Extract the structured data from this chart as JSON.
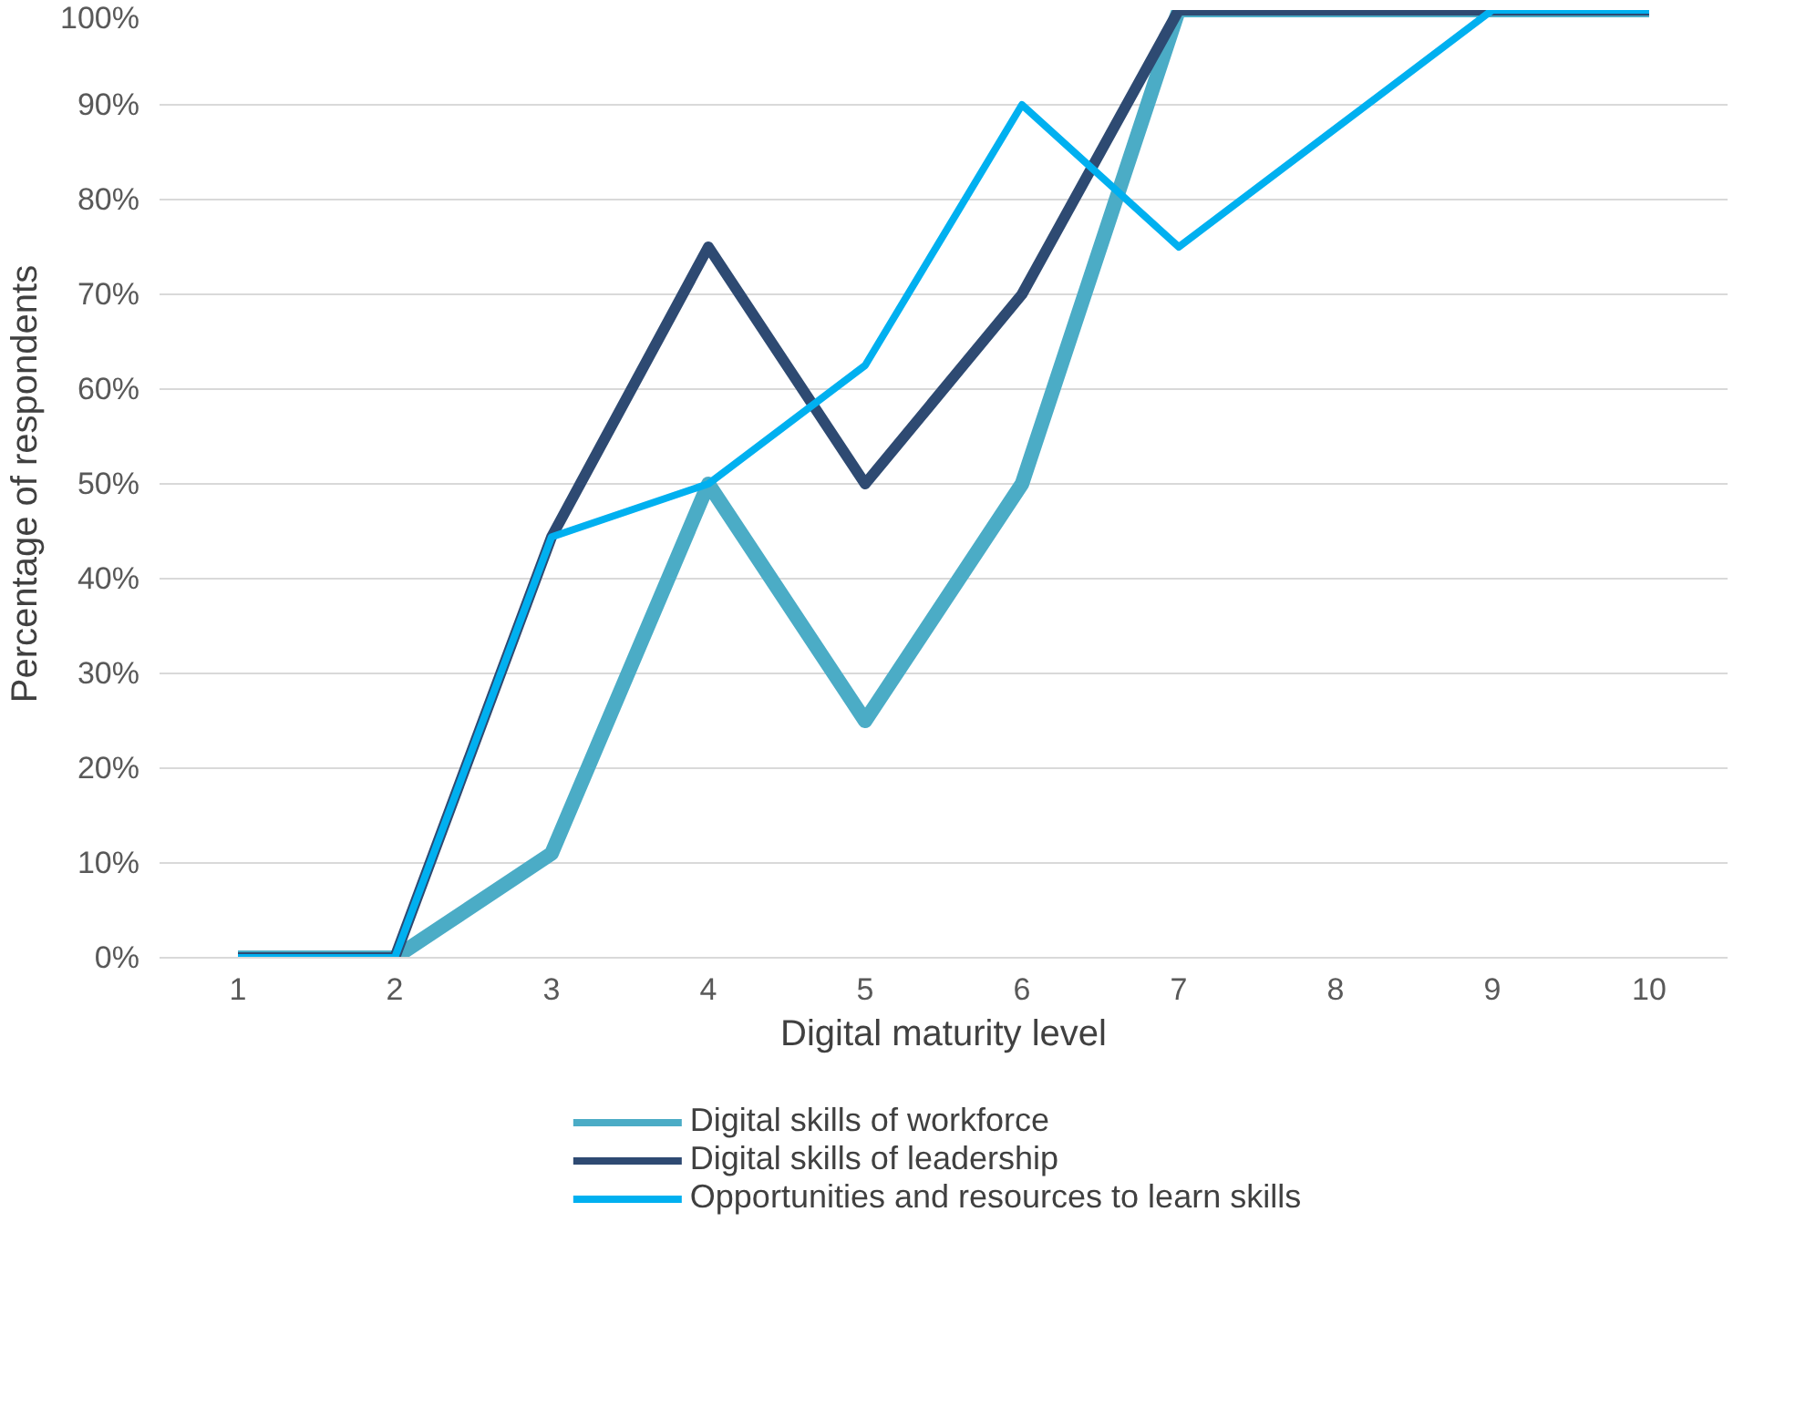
{
  "chart_data": {
    "type": "line",
    "xlabel": "Digital maturity level",
    "ylabel": "Percentage of respondents",
    "categories": [
      "1",
      "2",
      "3",
      "4",
      "5",
      "6",
      "7",
      "8",
      "9",
      "10"
    ],
    "series": [
      {
        "name": "Digital skills of workforce",
        "color": "#4bacc6",
        "values": [
          0,
          0,
          11,
          50,
          25,
          50,
          100,
          100,
          100,
          100
        ]
      },
      {
        "name": "Digital skills of leadership",
        "color": "#2e4a72",
        "values": [
          0,
          0,
          44.4,
          75,
          50,
          70,
          100,
          100,
          100,
          100
        ]
      },
      {
        "name": "Opportunities and resources to learn skills",
        "color": "#00b0f0",
        "values": [
          0,
          0,
          44.4,
          50,
          62.5,
          90,
          75,
          87.5,
          100,
          100
        ]
      }
    ],
    "ylim": [
      0,
      100
    ],
    "yticks": [
      {
        "value": 0,
        "label": "0%"
      },
      {
        "value": 10,
        "label": "10%"
      },
      {
        "value": 20,
        "label": "20%"
      },
      {
        "value": 30,
        "label": "30%"
      },
      {
        "value": 40,
        "label": "40%"
      },
      {
        "value": 50,
        "label": "50%"
      },
      {
        "value": 60,
        "label": "60%"
      },
      {
        "value": 70,
        "label": "70%"
      },
      {
        "value": 80,
        "label": "80%"
      },
      {
        "value": 90,
        "label": "90%"
      },
      {
        "value": 100,
        "label": "100%"
      }
    ],
    "grid": "y",
    "legend": "bottom",
    "marker": "none",
    "line_style": "solid"
  }
}
